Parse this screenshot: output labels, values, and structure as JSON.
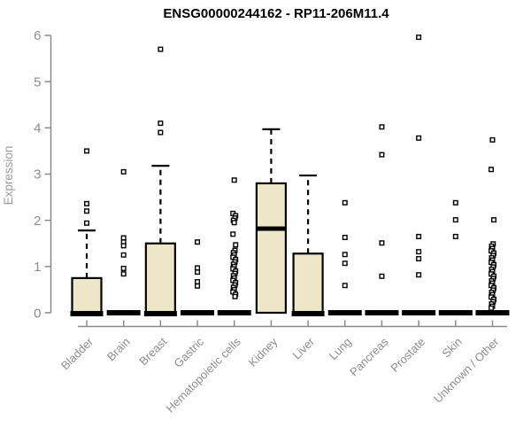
{
  "chart_data": {
    "type": "boxplot",
    "title": "ENSG00000244162 - RP11-206M11.4",
    "xlabel": "",
    "ylabel": "Expression",
    "ylim": [
      0,
      6
    ],
    "yticks": [
      0,
      1,
      2,
      3,
      4,
      5,
      6
    ],
    "grid": false,
    "legend": null,
    "colors": {
      "box_fill": "#EDE6C7",
      "box_stroke": "#000000",
      "median": "#000000",
      "outlier_fill": "#ffffff",
      "outlier_stroke": "#000000",
      "axis": "#8a8a8a",
      "tick_text": "#8c8c8c",
      "title_text": "#000000"
    },
    "categories": [
      "Bladder",
      "Brain",
      "Breast",
      "Gastric",
      "Hematopoietic cells",
      "Kidney",
      "Liver",
      "Lung",
      "Pancreas",
      "Prostate",
      "Skin",
      "Unknown / Other"
    ],
    "series": [
      {
        "category": "Bladder",
        "whisker_low": 0,
        "q1": 0,
        "median": 0,
        "q3": 0.75,
        "whisker_high": 1.78,
        "outliers": [
          1.94,
          2.2,
          2.36,
          3.5
        ]
      },
      {
        "category": "Brain",
        "whisker_low": 0,
        "q1": 0,
        "median": 0,
        "q3": 0,
        "whisker_high": 0,
        "outliers": [
          3.05,
          1.62,
          1.53,
          1.45,
          1.25,
          0.96,
          0.84
        ]
      },
      {
        "category": "Breast",
        "whisker_low": 0,
        "q1": 0,
        "median": 0,
        "q3": 1.5,
        "whisker_high": 3.18,
        "outliers": [
          5.7,
          4.1,
          3.9
        ]
      },
      {
        "category": "Gastric",
        "whisker_low": 0,
        "q1": 0,
        "median": 0,
        "q3": 0,
        "whisker_high": 0,
        "outliers": [
          1.53,
          0.97,
          0.88,
          0.67,
          0.58
        ]
      },
      {
        "category": "Hematopoietic cells",
        "whisker_low": 0,
        "q1": 0,
        "median": 0,
        "q3": 0,
        "whisker_high": 0,
        "outliers": [
          2.87,
          2.15,
          2.1,
          2.05,
          2.0,
          1.95,
          1.7,
          1.47,
          1.35,
          1.3,
          1.25,
          1.2,
          1.15,
          1.1,
          1.05,
          1.0,
          0.95,
          0.9,
          0.85,
          0.8,
          0.75,
          0.7,
          0.65,
          0.6,
          0.55,
          0.5,
          0.45,
          0.4,
          0.35
        ]
      },
      {
        "category": "Kidney",
        "whisker_low": 0,
        "q1": 0,
        "median": 1.82,
        "q3": 2.8,
        "whisker_high": 3.97,
        "outliers": []
      },
      {
        "category": "Liver",
        "whisker_low": 0,
        "q1": 0,
        "median": 0,
        "q3": 1.28,
        "whisker_high": 2.97,
        "outliers": []
      },
      {
        "category": "Lung",
        "whisker_low": 0,
        "q1": 0,
        "median": 0,
        "q3": 0,
        "whisker_high": 0,
        "outliers": [
          2.38,
          1.63,
          1.26,
          1.07,
          0.59
        ]
      },
      {
        "category": "Pancreas",
        "whisker_low": 0,
        "q1": 0,
        "median": 0,
        "q3": 0,
        "whisker_high": 0,
        "outliers": [
          4.02,
          3.42,
          1.51,
          0.79
        ]
      },
      {
        "category": "Prostate",
        "whisker_low": 0,
        "q1": 0,
        "median": 0,
        "q3": 0,
        "whisker_high": 0,
        "outliers": [
          5.96,
          3.78,
          1.65,
          1.32,
          1.17,
          0.82
        ]
      },
      {
        "category": "Skin",
        "whisker_low": 0,
        "q1": 0,
        "median": 0,
        "q3": 0,
        "whisker_high": 0,
        "outliers": [
          2.38,
          2.01,
          1.65
        ]
      },
      {
        "category": "Unknown / Other",
        "whisker_low": 0,
        "q1": 0,
        "median": 0,
        "q3": 0,
        "whisker_high": 0,
        "outliers": [
          3.74,
          3.1,
          2.01,
          1.49,
          1.44,
          1.39,
          1.34,
          1.29,
          1.24,
          1.19,
          1.14,
          1.09,
          1.04,
          0.99,
          0.94,
          0.89,
          0.84,
          0.79,
          0.74,
          0.69,
          0.64,
          0.59,
          0.54,
          0.49,
          0.44,
          0.39,
          0.34,
          0.29,
          0.24,
          0.19,
          0.14,
          0.1
        ]
      }
    ]
  }
}
